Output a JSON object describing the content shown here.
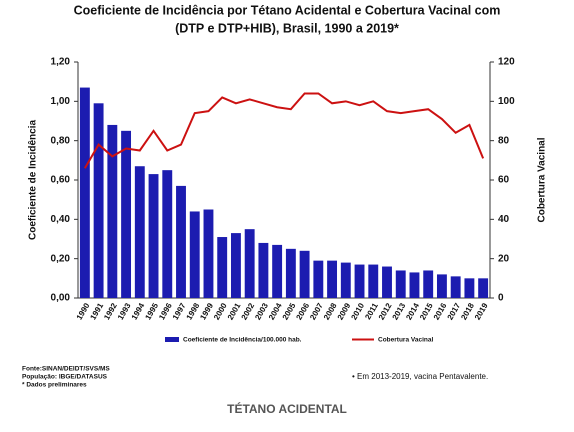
{
  "chart_data": {
    "type": "bar_line",
    "title": [
      "Coeficiente de Incidência por Tétano Acidental e Cobertura Vacinal com",
      "(DTP e DTP+HIB), Brasil, 1990 a 2019*"
    ],
    "ylabel": "Coeficiente de Incidência",
    "y2label": "Cobertura Vacinal",
    "categories": [
      "1990",
      "1991",
      "1992",
      "1993",
      "1994",
      "1995",
      "1996",
      "1997",
      "1998",
      "1999",
      "2000",
      "2001",
      "2002",
      "2003",
      "2004",
      "2005",
      "2006",
      "2007",
      "2008",
      "2009",
      "2010",
      "2011",
      "2012",
      "2013",
      "2014",
      "2015",
      "2016",
      "2017",
      "2018",
      "2019"
    ],
    "series": [
      {
        "name": "Coeficiente de Incidência/100.000 hab.",
        "color": "#1c1cb0",
        "kind": "bar",
        "values": [
          1.07,
          0.99,
          0.88,
          0.85,
          0.67,
          0.63,
          0.65,
          0.57,
          0.44,
          0.45,
          0.31,
          0.33,
          0.35,
          0.28,
          0.27,
          0.25,
          0.24,
          0.19,
          0.19,
          0.18,
          0.17,
          0.17,
          0.16,
          0.14,
          0.13,
          0.14,
          0.12,
          0.11,
          0.1,
          0.1
        ]
      },
      {
        "name": "Cobertura Vacinal",
        "color": "#cc1111",
        "kind": "line",
        "axis": "y2",
        "values": [
          66,
          78,
          72,
          76,
          75,
          85,
          75,
          78,
          94,
          95,
          102,
          99,
          101,
          99,
          97,
          96,
          104,
          104,
          99,
          100,
          98,
          100,
          95,
          94,
          95,
          96,
          91,
          84,
          88,
          71
        ]
      }
    ],
    "ylim": [
      0,
      1.2
    ],
    "yticks": [
      {
        "value": 0,
        "label": "0,00"
      },
      {
        "value": 0.2,
        "label": "0,20"
      },
      {
        "value": 0.4,
        "label": "0,40"
      },
      {
        "value": 0.6,
        "label": "0,60"
      },
      {
        "value": 0.8,
        "label": "0,80"
      },
      {
        "value": 1.0,
        "label": "1,00"
      },
      {
        "value": 1.2,
        "label": "1,20"
      }
    ],
    "y2lim": [
      0,
      120
    ],
    "y2ticks": [
      0,
      20,
      40,
      60,
      80,
      100,
      120
    ],
    "notes": [
      "Fonte:SINAN/DEIDT/SVS/MS",
      "População: IBGE/DATASUS",
      "* Dados preliminares"
    ],
    "note_right": "• Em 2013-2019, vacina Pentavalente.",
    "caption": "TÉTANO ACIDENTAL"
  }
}
